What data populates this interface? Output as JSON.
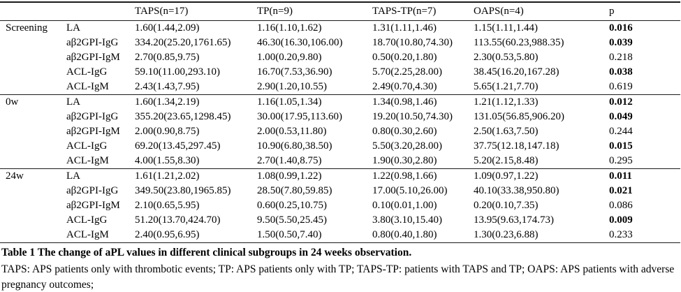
{
  "table": {
    "headers": [
      "",
      "",
      "TAPS(n=17)",
      "TP(n=9)",
      "TAPS-TP(n=7)",
      "OAPS(n=4)",
      "p"
    ],
    "sections": [
      {
        "group": "Screening",
        "rows": [
          {
            "test": "LA",
            "values": [
              "1.60(1.44,2.09)",
              "1.16(1.10,1.62)",
              "1.31(1.11,1.46)",
              "1.15(1.11,1.44)"
            ],
            "p": "0.016",
            "p_bold": true
          },
          {
            "test": "aβ2GPI-IgG",
            "values": [
              "334.20(25.20,1761.65)",
              "46.30(16.30,106.00)",
              "18.70(10.80,74.30)",
              "113.55(60.23,988.35)"
            ],
            "p": "0.039",
            "p_bold": true
          },
          {
            "test": "aβ2GPI-IgM",
            "values": [
              "2.70(0.85,9.75)",
              "1.00(0.20,9.80)",
              "0.50(0.20,1.80)",
              "2.30(0.53,5.80)"
            ],
            "p": "0.218",
            "p_bold": false
          },
          {
            "test": "ACL-IgG",
            "values": [
              "59.10(11.00,293.10)",
              "16.70(7.53,36.90)",
              "5.70(2.25,28.00)",
              "38.45(16.20,167.28)"
            ],
            "p": "0.038",
            "p_bold": true
          },
          {
            "test": "ACL-IgM",
            "values": [
              "2.43(1.43,7.95)",
              "2.90(1.20,10.55)",
              "2.49(0.70,4.30)",
              "5.65(1.21,7.70)"
            ],
            "p": "0.619",
            "p_bold": false
          }
        ]
      },
      {
        "group": "0w",
        "rows": [
          {
            "test": "LA",
            "values": [
              "1.60(1.34,2.19)",
              "1.16(1.05,1.34)",
              "1.34(0.98,1.46)",
              "1.21(1.12,1.33)"
            ],
            "p": "0.012",
            "p_bold": true
          },
          {
            "test": "aβ2GPI-IgG",
            "values": [
              "355.20(23.65,1298.45)",
              "30.00(17.95,113.60)",
              "19.20(10.50,74.30)",
              "131.05(56.85,906.20)"
            ],
            "p": "0.049",
            "p_bold": true
          },
          {
            "test": "aβ2GPI-IgM",
            "values": [
              "2.00(0.90,8.75)",
              "2.00(0.53,11.80)",
              "0.80(0.30,2.60)",
              "2.50(1.63,7.50)"
            ],
            "p": "0.244",
            "p_bold": false
          },
          {
            "test": "ACL-IgG",
            "values": [
              "69.20(13.45,297.45)",
              "10.90(6.80,38.50)",
              "5.50(3.20,28.00)",
              "37.75(12.18,147.18)"
            ],
            "p": "0.015",
            "p_bold": true
          },
          {
            "test": "ACL-IgM",
            "values": [
              "4.00(1.55,8.30)",
              "2.70(1.40,8.75)",
              "1.90(0.30,2.80)",
              "5.20(2.15,8.48)"
            ],
            "p": "0.295",
            "p_bold": false
          }
        ]
      },
      {
        "group": "24w",
        "rows": [
          {
            "test": "LA",
            "values": [
              "1.61(1.21,2.02)",
              "1.08(0.99,1.22)",
              "1.22(0.98,1.66)",
              "1.09(0.97,1.22)"
            ],
            "p": "0.011",
            "p_bold": true
          },
          {
            "test": "aβ2GPI-IgG",
            "values": [
              "349.50(23.80,1965.85)",
              "28.50(7.80,59.85)",
              "17.00(5.10,26.00)",
              "40.10(33.38,950.80)"
            ],
            "p": "0.021",
            "p_bold": true
          },
          {
            "test": "aβ2GPI-IgM",
            "values": [
              "2.10(0.65,5.95)",
              "0.60(0.25,10.75)",
              "0.10(0.01,1.00)",
              "0.20(0.10,7.35)"
            ],
            "p": "0.086",
            "p_bold": false
          },
          {
            "test": "ACL-IgG",
            "values": [
              "51.20(13.70,424.70)",
              "9.50(5.50,25.45)",
              "3.80(3.10,15.40)",
              "13.95(9.63,174.73)"
            ],
            "p": "0.009",
            "p_bold": true
          },
          {
            "test": "ACL-IgM",
            "values": [
              "2.40(0.95,6.95)",
              "1.50(0.50,7.40)",
              "0.80(0.40,1.80)",
              "1.30(0.23,6.88)"
            ],
            "p": "0.233",
            "p_bold": false
          }
        ]
      }
    ],
    "caption": "Table 1 The change of aPL values in different clinical subgroups in 24 weeks observation.",
    "notes": "TAPS: APS patients only with thrombotic events; TP: APS patients only with TP; TAPS-TP: patients with TAPS and TP; OAPS: APS patients with adverse pregnancy outcomes;"
  }
}
